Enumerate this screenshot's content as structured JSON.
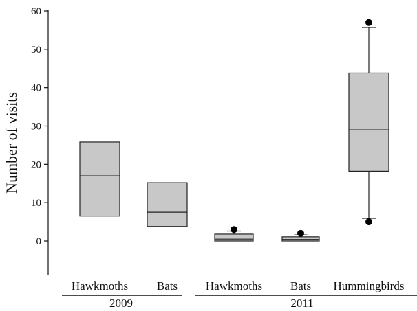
{
  "chart_data": {
    "type": "box",
    "ylabel": "Number of visits",
    "xlabel": "",
    "ylim": [
      -10,
      60
    ],
    "yticks": [
      0,
      10,
      20,
      30,
      40,
      50,
      60
    ],
    "grid": false,
    "categories": [
      "Hawkmoths",
      "Bats",
      "Hawkmoths",
      "Bats",
      "Hummingbirds"
    ],
    "groups": [
      {
        "label": "2009",
        "categories": [
          0,
          1
        ]
      },
      {
        "label": "2011",
        "categories": [
          2,
          3,
          4
        ]
      }
    ],
    "boxes": [
      {
        "category": "Hawkmoths",
        "group": "2009",
        "q1": 6.5,
        "median": 17,
        "q3": 25.8,
        "whisker_low": null,
        "whisker_high": null,
        "outliers": []
      },
      {
        "category": "Bats",
        "group": "2009",
        "q1": 3.8,
        "median": 7.5,
        "q3": 15.2,
        "whisker_low": null,
        "whisker_high": null,
        "outliers": []
      },
      {
        "category": "Hawkmoths",
        "group": "2011",
        "q1": 0,
        "median": 0.5,
        "q3": 1.8,
        "whisker_low": null,
        "whisker_high": 2.6,
        "outliers": [
          3
        ]
      },
      {
        "category": "Bats",
        "group": "2011",
        "q1": 0,
        "median": 0.4,
        "q3": 1.1,
        "whisker_low": null,
        "whisker_high": 1.6,
        "outliers": [
          2
        ]
      },
      {
        "category": "Hummingbirds",
        "group": "2011",
        "q1": 18.2,
        "median": 29,
        "q3": 43.8,
        "whisker_low": 5.9,
        "whisker_high": 55.7,
        "outliers": [
          5,
          57
        ]
      }
    ],
    "box_fill": "#c8c8c8",
    "stroke": "#222222"
  }
}
